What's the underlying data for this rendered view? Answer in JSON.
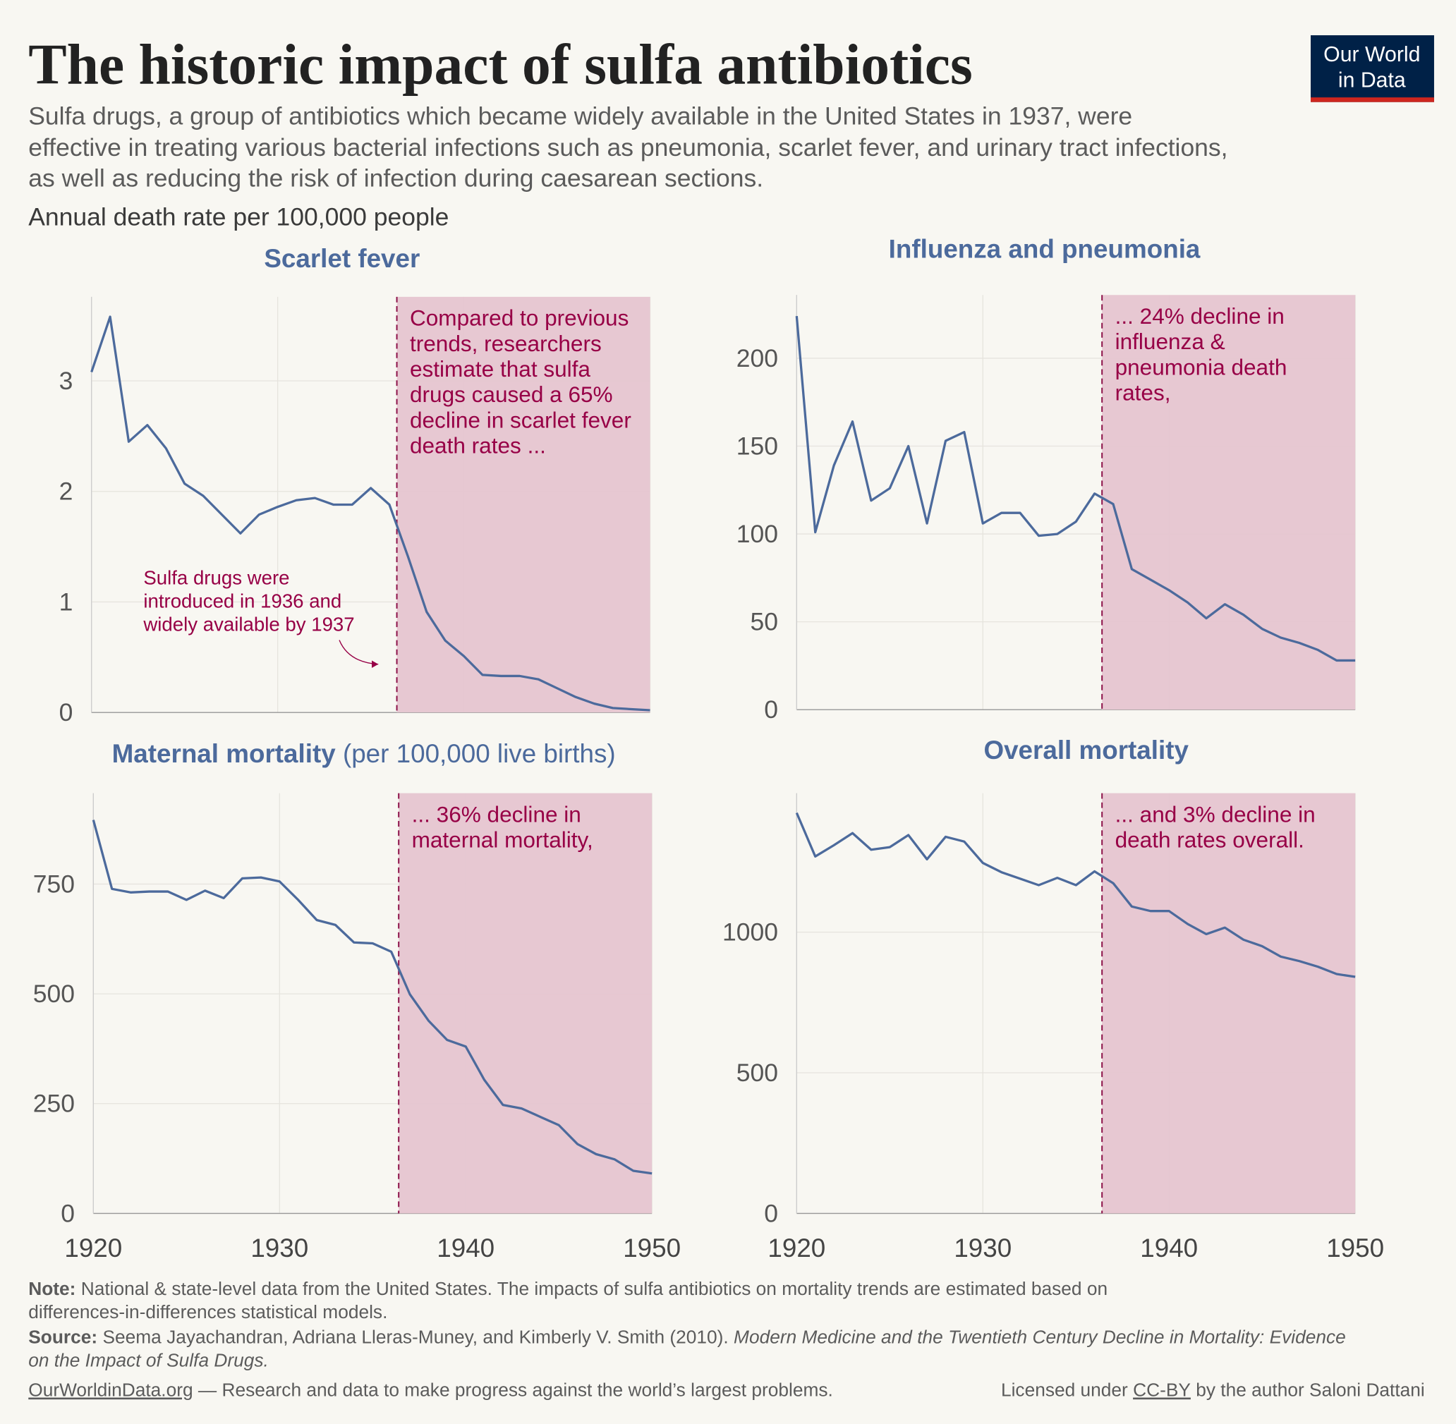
{
  "header": {
    "title": "The historic impact of sulfa antibiotics",
    "subtitle": [
      "Sulfa drugs, a group of antibiotics which became widely available in the United States in 1937, were",
      "effective in treating various bacterial infections such as pneumonia, scarlet fever, and urinary tract infections,",
      "as well as reducing the risk of infection during caesarean sections."
    ],
    "y_axis_label": "Annual death rate per 100,000 people",
    "logo": [
      "Our World",
      "in Data"
    ]
  },
  "chart_data": [
    {
      "type": "line",
      "title": "Scarlet fever",
      "color": "#4c6a9c",
      "shade_color": "#e6c5d0",
      "annotation_color": "#970046",
      "grid": true,
      "show_x_labels": false,
      "shade_start": 1936.4,
      "xlim": [
        1920,
        1950
      ],
      "xticks": [
        1920,
        1930,
        1940,
        1950
      ],
      "ylim": [
        0,
        3.76
      ],
      "yticks": [
        0,
        1,
        2,
        3
      ],
      "x": [
        1920,
        1921,
        1922,
        1923,
        1924,
        1925,
        1926,
        1927,
        1928,
        1929,
        1930,
        1931,
        1932,
        1933,
        1934,
        1935,
        1936,
        1937,
        1938,
        1939,
        1940,
        1941,
        1942,
        1943,
        1944,
        1945,
        1946,
        1947,
        1948,
        1949,
        1950
      ],
      "values": [
        3.08,
        3.58,
        2.45,
        2.6,
        2.39,
        2.07,
        1.96,
        1.79,
        1.62,
        1.79,
        1.86,
        1.92,
        1.94,
        1.88,
        1.88,
        2.03,
        1.88,
        1.41,
        0.91,
        0.65,
        0.51,
        0.34,
        0.33,
        0.33,
        0.3,
        0.22,
        0.14,
        0.08,
        0.04,
        0.03,
        0.02
      ],
      "annotation": [
        "Compared to previous",
        "trends, researchers",
        "estimate that sulfa",
        "drugs caused a 65%",
        "decline in scarlet fever",
        "death rates ..."
      ],
      "note": [
        "Sulfa drugs were",
        "introduced in 1936 and",
        "widely available by 1937"
      ]
    },
    {
      "type": "line",
      "title": "Influenza and pneumonia",
      "color": "#4c6a9c",
      "shade_color": "#e6c5d0",
      "annotation_color": "#970046",
      "grid": true,
      "show_x_labels": false,
      "shade_start": 1936.4,
      "xlim": [
        1920,
        1950
      ],
      "xticks": [
        1920,
        1930,
        1940,
        1950
      ],
      "ylim": [
        0,
        236
      ],
      "yticks": [
        0,
        50,
        100,
        150,
        200
      ],
      "x": [
        1920,
        1921,
        1922,
        1923,
        1924,
        1925,
        1926,
        1927,
        1928,
        1929,
        1930,
        1931,
        1932,
        1933,
        1934,
        1935,
        1936,
        1937,
        1938,
        1939,
        1940,
        1941,
        1942,
        1943,
        1944,
        1945,
        1946,
        1947,
        1948,
        1949,
        1950
      ],
      "values": [
        224,
        101,
        139,
        164,
        119,
        126,
        150,
        106,
        153,
        158,
        106,
        112,
        112,
        99,
        100,
        107,
        123,
        117,
        80,
        74,
        68,
        61,
        52,
        60,
        54,
        46,
        41,
        38,
        34,
        28,
        28
      ],
      "annotation": [
        "... 24% decline in",
        "influenza &",
        "pneumonia death",
        "rates,"
      ]
    },
    {
      "type": "line",
      "title": "Maternal mortality",
      "title_note": "(per 100,000 live births)",
      "color": "#4c6a9c",
      "shade_color": "#e6c5d0",
      "annotation_color": "#970046",
      "grid": true,
      "show_x_labels": true,
      "shade_start": 1936.4,
      "xlim": [
        1920,
        1950
      ],
      "xticks": [
        1920,
        1930,
        1940,
        1950
      ],
      "ylim": [
        0,
        957
      ],
      "yticks": [
        0,
        250,
        500,
        750
      ],
      "x": [
        1920,
        1921,
        1922,
        1923,
        1924,
        1925,
        1926,
        1927,
        1928,
        1929,
        1930,
        1931,
        1932,
        1933,
        1934,
        1935,
        1936,
        1937,
        1938,
        1939,
        1940,
        1941,
        1942,
        1943,
        1944,
        1945,
        1946,
        1947,
        1948,
        1949,
        1950
      ],
      "values": [
        896,
        739,
        731,
        733,
        733,
        714,
        735,
        718,
        763,
        765,
        756,
        714,
        668,
        657,
        617,
        615,
        596,
        499,
        439,
        395,
        380,
        304,
        247,
        239,
        220,
        201,
        158,
        135,
        123,
        97,
        91
      ],
      "annotation": [
        "... 36% decline in",
        "maternal mortality,"
      ]
    },
    {
      "type": "line",
      "title": "Overall mortality",
      "color": "#4c6a9c",
      "shade_color": "#e6c5d0",
      "annotation_color": "#970046",
      "grid": true,
      "show_x_labels": true,
      "shade_start": 1936.4,
      "xlim": [
        1920,
        1950
      ],
      "xticks": [
        1920,
        1930,
        1940,
        1950
      ],
      "ylim": [
        0,
        1494
      ],
      "yticks": [
        0,
        500,
        1000
      ],
      "x": [
        1920,
        1921,
        1922,
        1923,
        1924,
        1925,
        1926,
        1927,
        1928,
        1929,
        1930,
        1931,
        1932,
        1933,
        1934,
        1935,
        1936,
        1937,
        1938,
        1939,
        1940,
        1941,
        1942,
        1943,
        1944,
        1945,
        1946,
        1947,
        1948,
        1949,
        1950
      ],
      "values": [
        1424,
        1269,
        1309,
        1352,
        1293,
        1302,
        1345,
        1259,
        1339,
        1322,
        1246,
        1213,
        1190,
        1167,
        1193,
        1167,
        1216,
        1174,
        1091,
        1075,
        1075,
        1029,
        993,
        1016,
        973,
        950,
        913,
        897,
        877,
        851,
        841
      ],
      "annotation": [
        "... and 3% decline in",
        "death rates overall."
      ]
    }
  ],
  "footer": {
    "note_label": "Note:",
    "note": [
      " National & state-level data from the United States. The impacts of sulfa antibiotics on mortality trends are estimated based on",
      "differences-in-differences statistical models."
    ],
    "source_label": "Source:",
    "source_authors": " Seema Jayachandran, Adriana Lleras-Muney, and Kimberly V. Smith (2010). ",
    "source_title": [
      "Modern Medicine and the Twentieth Century Decline in Mortality: Evidence",
      "on the Impact of Sulfa Drugs."
    ],
    "site": "OurWorldinData.org",
    "tagline": " — Research and data to make progress against the world’s largest problems.",
    "license_pre": "Licensed under ",
    "license": "CC-BY",
    "license_post": " by the author Saloni Dattani"
  }
}
